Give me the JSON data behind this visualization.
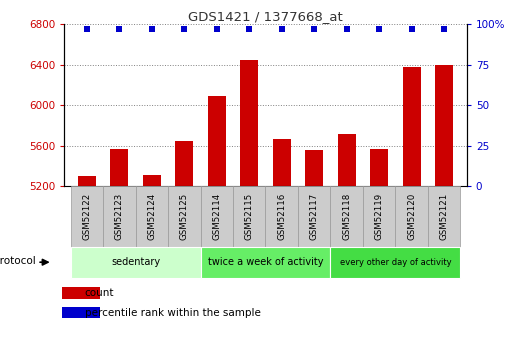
{
  "title": "GDS1421 / 1377668_at",
  "samples": [
    "GSM52122",
    "GSM52123",
    "GSM52124",
    "GSM52125",
    "GSM52114",
    "GSM52115",
    "GSM52116",
    "GSM52117",
    "GSM52118",
    "GSM52119",
    "GSM52120",
    "GSM52121"
  ],
  "counts": [
    5300,
    5570,
    5310,
    5650,
    6090,
    6450,
    5670,
    5560,
    5720,
    5570,
    6380,
    6400
  ],
  "percentile_ranks": [
    97,
    97,
    97,
    97,
    97,
    97,
    97,
    97,
    97,
    97,
    97,
    97
  ],
  "ylim_left": [
    5200,
    6800
  ],
  "ylim_right": [
    0,
    100
  ],
  "yticks_left": [
    5200,
    5600,
    6000,
    6400,
    6800
  ],
  "yticks_right": [
    0,
    25,
    50,
    75,
    100
  ],
  "bar_color": "#cc0000",
  "dot_color": "#0000cc",
  "groups": [
    {
      "label": "sedentary",
      "indices": [
        0,
        1,
        2,
        3
      ],
      "color": "#ccffcc"
    },
    {
      "label": "twice a week of activity",
      "indices": [
        4,
        5,
        6,
        7
      ],
      "color": "#66ee66"
    },
    {
      "label": "every other day of activity",
      "indices": [
        8,
        9,
        10,
        11
      ],
      "color": "#44dd44"
    }
  ],
  "protocol_label": "protocol",
  "legend_count_label": "count",
  "legend_pct_label": "percentile rank within the sample",
  "bar_width": 0.55,
  "grid_color": "#000000",
  "tick_label_color_left": "#cc0000",
  "tick_label_color_right": "#0000cc",
  "title_color": "#333333",
  "sample_box_color": "#cccccc",
  "sample_box_edge": "#999999"
}
